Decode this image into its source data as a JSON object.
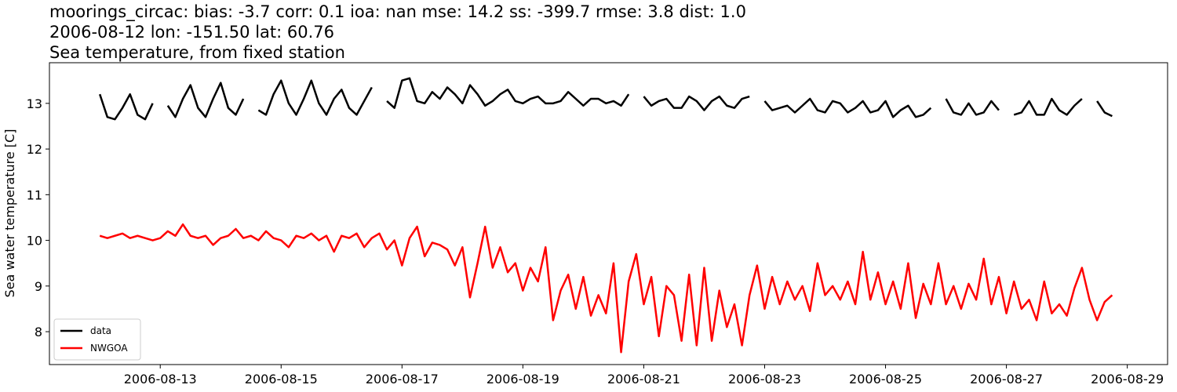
{
  "chart_data": {
    "type": "line",
    "title": [
      "moorings_circac: bias: -3.7  corr: 0.1  ioa: nan  mse: 14.2  ss: -399.7  rmse: 3.8  dist: 1.0",
      "2006-08-12 lon: -151.50 lat: 60.76",
      "Sea temperature, from fixed station"
    ],
    "y_label": "Sea water temperature [C]",
    "x": [
      "2006-08-12T00:00",
      "2006-08-12T03:00",
      "2006-08-12T06:00",
      "2006-08-12T09:00",
      "2006-08-12T12:00",
      "2006-08-12T15:00",
      "2006-08-12T18:00",
      "2006-08-12T21:00",
      "2006-08-13T00:00",
      "2006-08-13T03:00",
      "2006-08-13T06:00",
      "2006-08-13T09:00",
      "2006-08-13T12:00",
      "2006-08-13T15:00",
      "2006-08-13T18:00",
      "2006-08-13T21:00",
      "2006-08-14T00:00",
      "2006-08-14T03:00",
      "2006-08-14T06:00",
      "2006-08-14T09:00",
      "2006-08-14T12:00",
      "2006-08-14T15:00",
      "2006-08-14T18:00",
      "2006-08-14T21:00",
      "2006-08-15T00:00",
      "2006-08-15T03:00",
      "2006-08-15T06:00",
      "2006-08-15T09:00",
      "2006-08-15T12:00",
      "2006-08-15T15:00",
      "2006-08-15T18:00",
      "2006-08-15T21:00",
      "2006-08-16T00:00",
      "2006-08-16T03:00",
      "2006-08-16T06:00",
      "2006-08-16T09:00",
      "2006-08-16T12:00",
      "2006-08-16T15:00",
      "2006-08-16T18:00",
      "2006-08-16T21:00",
      "2006-08-17T00:00",
      "2006-08-17T03:00",
      "2006-08-17T06:00",
      "2006-08-17T09:00",
      "2006-08-17T12:00",
      "2006-08-17T15:00",
      "2006-08-17T18:00",
      "2006-08-17T21:00",
      "2006-08-18T00:00",
      "2006-08-18T03:00",
      "2006-08-18T06:00",
      "2006-08-18T09:00",
      "2006-08-18T12:00",
      "2006-08-18T15:00",
      "2006-08-18T18:00",
      "2006-08-18T21:00",
      "2006-08-19T00:00",
      "2006-08-19T03:00",
      "2006-08-19T06:00",
      "2006-08-19T09:00",
      "2006-08-19T12:00",
      "2006-08-19T15:00",
      "2006-08-19T18:00",
      "2006-08-19T21:00",
      "2006-08-20T00:00",
      "2006-08-20T03:00",
      "2006-08-20T06:00",
      "2006-08-20T09:00",
      "2006-08-20T12:00",
      "2006-08-20T15:00",
      "2006-08-20T18:00",
      "2006-08-20T21:00",
      "2006-08-21T00:00",
      "2006-08-21T03:00",
      "2006-08-21T06:00",
      "2006-08-21T09:00",
      "2006-08-21T12:00",
      "2006-08-21T15:00",
      "2006-08-21T18:00",
      "2006-08-21T21:00",
      "2006-08-22T00:00",
      "2006-08-22T03:00",
      "2006-08-22T06:00",
      "2006-08-22T09:00",
      "2006-08-22T12:00",
      "2006-08-22T15:00",
      "2006-08-22T18:00",
      "2006-08-22T21:00",
      "2006-08-23T00:00",
      "2006-08-23T03:00",
      "2006-08-23T06:00",
      "2006-08-23T09:00",
      "2006-08-23T12:00",
      "2006-08-23T15:00",
      "2006-08-23T18:00",
      "2006-08-23T21:00",
      "2006-08-24T00:00",
      "2006-08-24T03:00",
      "2006-08-24T06:00",
      "2006-08-24T09:00",
      "2006-08-24T12:00",
      "2006-08-24T15:00",
      "2006-08-24T18:00",
      "2006-08-24T21:00",
      "2006-08-25T00:00",
      "2006-08-25T03:00",
      "2006-08-25T06:00",
      "2006-08-25T09:00",
      "2006-08-25T12:00",
      "2006-08-25T15:00",
      "2006-08-25T18:00",
      "2006-08-25T21:00",
      "2006-08-26T00:00",
      "2006-08-26T03:00",
      "2006-08-26T06:00",
      "2006-08-26T09:00",
      "2006-08-26T12:00",
      "2006-08-26T15:00",
      "2006-08-26T18:00",
      "2006-08-26T21:00",
      "2006-08-27T00:00",
      "2006-08-27T03:00",
      "2006-08-27T06:00",
      "2006-08-27T09:00",
      "2006-08-27T12:00",
      "2006-08-27T15:00",
      "2006-08-27T18:00",
      "2006-08-27T21:00",
      "2006-08-28T00:00",
      "2006-08-28T03:00",
      "2006-08-28T06:00",
      "2006-08-28T09:00",
      "2006-08-28T12:00",
      "2006-08-28T15:00",
      "2006-08-28T18:00"
    ],
    "series": [
      {
        "name": "data",
        "color": "#000000",
        "values": [
          13.2,
          12.7,
          12.65,
          12.9,
          13.2,
          12.75,
          12.65,
          13.0,
          null,
          12.95,
          12.7,
          13.1,
          13.4,
          12.9,
          12.7,
          13.1,
          13.45,
          12.9,
          12.75,
          13.1,
          null,
          12.85,
          12.75,
          13.2,
          13.5,
          13.0,
          12.75,
          13.1,
          13.5,
          13.0,
          12.75,
          13.1,
          13.3,
          12.9,
          12.75,
          13.05,
          13.35,
          null,
          13.05,
          12.9,
          13.5,
          13.55,
          13.05,
          13.0,
          13.25,
          13.1,
          13.35,
          13.2,
          13.0,
          13.4,
          13.2,
          12.95,
          13.05,
          13.2,
          13.3,
          13.05,
          13.0,
          13.1,
          13.15,
          13.0,
          13.0,
          13.05,
          13.25,
          13.1,
          12.95,
          13.1,
          13.1,
          13.0,
          13.05,
          12.95,
          13.2,
          null,
          13.15,
          12.95,
          13.05,
          13.1,
          12.9,
          12.9,
          13.15,
          13.05,
          12.85,
          13.05,
          13.15,
          12.95,
          12.9,
          13.1,
          13.15,
          null,
          13.05,
          12.85,
          12.9,
          12.95,
          12.8,
          12.95,
          13.1,
          12.85,
          12.8,
          13.05,
          13.0,
          12.8,
          12.9,
          13.05,
          12.8,
          12.85,
          13.05,
          12.7,
          12.85,
          12.95,
          12.7,
          12.75,
          12.9,
          null,
          13.1,
          12.8,
          12.75,
          13.0,
          12.75,
          12.8,
          13.05,
          12.85,
          null,
          12.75,
          12.8,
          13.05,
          12.75,
          12.75,
          13.1,
          12.85,
          12.75,
          12.95,
          13.1,
          null,
          13.05,
          12.8,
          12.72
        ]
      },
      {
        "name": "NWGOA",
        "color": "#ff0000",
        "values": [
          10.1,
          10.05,
          10.1,
          10.15,
          10.05,
          10.1,
          10.05,
          10.0,
          10.05,
          10.2,
          10.1,
          10.35,
          10.1,
          10.05,
          10.1,
          9.9,
          10.05,
          10.1,
          10.25,
          10.05,
          10.1,
          10.0,
          10.2,
          10.05,
          10.0,
          9.85,
          10.1,
          10.05,
          10.15,
          10.0,
          10.1,
          9.75,
          10.1,
          10.05,
          10.15,
          9.85,
          10.05,
          10.15,
          9.8,
          10.0,
          9.45,
          10.05,
          10.3,
          9.65,
          9.95,
          9.9,
          9.8,
          9.45,
          9.85,
          8.75,
          9.5,
          10.3,
          9.4,
          9.85,
          9.3,
          9.5,
          8.9,
          9.4,
          9.1,
          9.85,
          8.25,
          8.9,
          9.25,
          8.5,
          9.2,
          8.35,
          8.8,
          8.4,
          9.5,
          7.55,
          9.1,
          9.7,
          8.6,
          9.2,
          7.9,
          9.0,
          8.8,
          7.8,
          9.25,
          7.7,
          9.4,
          7.8,
          8.9,
          8.1,
          8.6,
          7.7,
          8.8,
          9.45,
          8.5,
          9.2,
          8.6,
          9.1,
          8.7,
          9.0,
          8.45,
          9.5,
          8.8,
          9.0,
          8.7,
          9.1,
          8.6,
          9.75,
          8.7,
          9.3,
          8.6,
          9.1,
          8.5,
          9.5,
          8.3,
          9.05,
          8.6,
          9.5,
          8.6,
          9.0,
          8.5,
          9.05,
          8.7,
          9.6,
          8.6,
          9.2,
          8.4,
          9.1,
          8.5,
          8.7,
          8.25,
          9.1,
          8.4,
          8.6,
          8.35,
          8.95,
          9.4,
          8.7,
          8.25,
          8.65,
          8.8
        ]
      }
    ],
    "xlim": [
      "2006-08-11T04:00",
      "2006-08-29T16:00"
    ],
    "xticks": [
      "2006-08-13",
      "2006-08-15",
      "2006-08-17",
      "2006-08-19",
      "2006-08-21",
      "2006-08-23",
      "2006-08-25",
      "2006-08-27",
      "2006-08-29"
    ],
    "ylim": [
      7.28,
      13.89
    ],
    "yticks": [
      8,
      9,
      10,
      11,
      12,
      13
    ],
    "grid": false,
    "legend": "lower left"
  }
}
